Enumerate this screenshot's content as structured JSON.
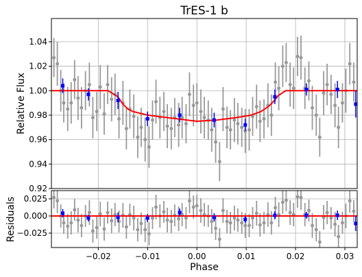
{
  "chart_data": [
    {
      "type": "scatter",
      "panel": "flux",
      "title": "TrES-1 b",
      "xlabel": "",
      "ylabel": "Relative Flux",
      "xlim": [
        -0.0295,
        0.0325
      ],
      "ylim": [
        0.92,
        1.059
      ],
      "grid": true,
      "y_ticks": [
        0.92,
        0.94,
        0.96,
        0.98,
        1.0,
        1.02,
        1.04
      ],
      "y_tick_labels": [
        "0.92",
        "0.94",
        "0.96",
        "0.98",
        "1.00",
        "1.02",
        "1.04"
      ],
      "model_curve": {
        "color": "#ff0000",
        "x": [
          -0.0295,
          -0.018,
          -0.016,
          -0.015,
          -0.014,
          -0.013,
          -0.012,
          -0.01,
          -0.006,
          -0.002,
          0.0,
          0.004,
          0.008,
          0.011,
          0.013,
          0.0145,
          0.0155,
          0.0165,
          0.018,
          0.0325
        ],
        "y": [
          1.0,
          1.0,
          0.995,
          0.989,
          0.985,
          0.983,
          0.982,
          0.98,
          0.978,
          0.976,
          0.975,
          0.976,
          0.978,
          0.98,
          0.983,
          0.987,
          0.991,
          0.996,
          1.0,
          1.0
        ]
      },
      "binned": {
        "color": "#0000ff",
        "x": [
          -0.0272,
          -0.022,
          -0.016,
          -0.01,
          -0.0035,
          0.0035,
          0.0098,
          0.0158,
          0.0222,
          0.0285,
          0.0322
        ],
        "y": [
          1.004,
          0.997,
          0.992,
          0.977,
          0.98,
          0.976,
          0.972,
          0.995,
          1.001,
          1.001,
          0.989
        ],
        "err": [
          0.006,
          0.005,
          0.007,
          0.006,
          0.006,
          0.006,
          0.005,
          0.006,
          0.005,
          0.007,
          0.011
        ]
      },
      "raw": {
        "color": "#999999",
        "x": [
          -0.029,
          -0.0283,
          -0.0276,
          -0.027,
          -0.0262,
          -0.0255,
          -0.0248,
          -0.0241,
          -0.0234,
          -0.0226,
          -0.0218,
          -0.0211,
          -0.0203,
          -0.0196,
          -0.0188,
          -0.0181,
          -0.0173,
          -0.0166,
          -0.0158,
          -0.015,
          -0.0143,
          -0.0136,
          -0.0128,
          -0.012,
          -0.0113,
          -0.0105,
          -0.0097,
          -0.009,
          -0.0083,
          -0.0075,
          -0.0067,
          -0.006,
          -0.0052,
          -0.0045,
          -0.0037,
          -0.003,
          -0.0022,
          -0.0015,
          -0.0007,
          0.0,
          0.0008,
          0.0015,
          0.0023,
          0.003,
          0.0038,
          0.0046,
          0.0053,
          0.0061,
          0.0068,
          0.0076,
          0.0083,
          0.0091,
          0.0098,
          0.0106,
          0.0113,
          0.0121,
          0.0128,
          0.0136,
          0.0144,
          0.0151,
          0.0159,
          0.0166,
          0.0174,
          0.0181,
          0.0189,
          0.0196,
          0.0204,
          0.0211,
          0.0219,
          0.0227,
          0.0234,
          0.0242,
          0.0249,
          0.0257,
          0.0264,
          0.0272,
          0.028,
          0.0287,
          0.0295,
          0.0302,
          0.031,
          0.0318
        ],
        "y": [
          1.027,
          1.022,
          1.0,
          0.99,
          0.985,
          0.99,
          1.009,
          0.994,
          0.986,
          1.0,
          1.005,
          0.978,
          0.983,
          1.003,
          0.981,
          1.005,
          0.993,
          0.997,
          0.977,
          0.99,
          0.969,
          0.985,
          0.979,
          0.962,
          0.97,
          0.96,
          0.954,
          0.976,
          0.991,
          0.978,
          0.983,
          0.971,
          0.969,
          0.978,
          0.972,
          0.978,
          0.973,
          0.997,
          0.988,
          0.99,
          0.983,
          0.978,
          0.976,
          0.968,
          0.958,
          0.942,
          0.985,
          0.97,
          0.968,
          0.976,
          0.973,
          0.97,
          0.967,
          0.968,
          0.979,
          0.987,
          0.975,
          0.977,
          0.988,
          0.98,
          1.007,
          1.002,
          1.02,
          1.023,
          1.005,
          1.002,
          1.028,
          1.027,
          1.002,
          1.008,
          0.986,
          0.98,
          0.962,
          0.998,
          1.005,
          0.997,
          0.988,
          0.97,
          0.99,
          1.0,
          1.022,
          1.007
        ],
        "err": [
          0.016,
          0.018,
          0.017,
          0.016,
          0.018,
          0.017,
          0.016,
          0.018,
          0.017,
          0.016,
          0.018,
          0.017,
          0.016,
          0.018,
          0.017,
          0.016,
          0.018,
          0.017,
          0.016,
          0.018,
          0.017,
          0.016,
          0.018,
          0.017,
          0.016,
          0.018,
          0.017,
          0.016,
          0.018,
          0.017,
          0.016,
          0.018,
          0.017,
          0.016,
          0.018,
          0.017,
          0.016,
          0.018,
          0.017,
          0.016,
          0.018,
          0.017,
          0.016,
          0.018,
          0.017,
          0.016,
          0.018,
          0.017,
          0.016,
          0.018,
          0.017,
          0.016,
          0.018,
          0.017,
          0.016,
          0.018,
          0.017,
          0.016,
          0.018,
          0.017,
          0.016,
          0.018,
          0.017,
          0.016,
          0.018,
          0.017,
          0.016,
          0.018,
          0.017,
          0.016,
          0.018,
          0.017,
          0.016,
          0.018,
          0.017,
          0.016,
          0.018,
          0.017,
          0.016,
          0.018,
          0.017,
          0.016
        ]
      }
    },
    {
      "type": "scatter",
      "panel": "residuals",
      "xlabel": "Phase",
      "ylabel": "Residuals",
      "xlim": [
        -0.0295,
        0.0325
      ],
      "ylim": [
        -0.046,
        0.037
      ],
      "grid": true,
      "x_ticks": [
        -0.02,
        -0.01,
        0.0,
        0.01,
        0.02,
        0.03
      ],
      "x_tick_labels": [
        "−0.02",
        "−0.01",
        "0.00",
        "0.01",
        "0.02",
        "0.03"
      ],
      "y_ticks": [
        -0.025,
        0.0,
        0.025
      ],
      "y_tick_labels": [
        "−0.025",
        "0.000",
        "0.025"
      ],
      "zero_line_color": "#ff0000",
      "binned": {
        "color": "#0000ff",
        "x": [
          -0.0272,
          -0.022,
          -0.016,
          -0.01,
          -0.0035,
          0.0035,
          0.0098,
          0.0158,
          0.0222,
          0.0285,
          0.0322
        ],
        "y": [
          0.004,
          -0.003,
          -0.002,
          -0.003,
          0.005,
          -0.002,
          -0.005,
          0.001,
          0.001,
          0.001,
          -0.011
        ],
        "err": [
          0.006,
          0.005,
          0.007,
          0.006,
          0.006,
          0.006,
          0.005,
          0.006,
          0.005,
          0.007,
          0.011
        ]
      },
      "raw": {
        "color": "#999999",
        "x": [
          -0.029,
          -0.0283,
          -0.0276,
          -0.027,
          -0.0262,
          -0.0255,
          -0.0248,
          -0.0241,
          -0.0234,
          -0.0226,
          -0.0218,
          -0.0211,
          -0.0203,
          -0.0196,
          -0.0188,
          -0.0181,
          -0.0173,
          -0.0166,
          -0.0158,
          -0.015,
          -0.0143,
          -0.0136,
          -0.0128,
          -0.012,
          -0.0113,
          -0.0105,
          -0.0097,
          -0.009,
          -0.0083,
          -0.0075,
          -0.0067,
          -0.006,
          -0.0052,
          -0.0045,
          -0.0037,
          -0.003,
          -0.0022,
          -0.0015,
          -0.0007,
          0.0,
          0.0008,
          0.0015,
          0.0023,
          0.003,
          0.0038,
          0.0046,
          0.0053,
          0.0061,
          0.0068,
          0.0076,
          0.0083,
          0.0091,
          0.0098,
          0.0106,
          0.0113,
          0.0121,
          0.0128,
          0.0136,
          0.0144,
          0.0151,
          0.0159,
          0.0166,
          0.0174,
          0.0181,
          0.0189,
          0.0196,
          0.0204,
          0.0211,
          0.0219,
          0.0227,
          0.0234,
          0.0242,
          0.0249,
          0.0257,
          0.0264,
          0.0272,
          0.028,
          0.0287,
          0.0295,
          0.0302,
          0.031,
          0.0318
        ],
        "y": [
          0.027,
          0.022,
          0.0,
          -0.01,
          -0.015,
          -0.01,
          0.009,
          -0.006,
          -0.014,
          0.0,
          0.005,
          -0.022,
          -0.017,
          0.003,
          -0.019,
          0.005,
          -0.007,
          0.002,
          -0.008,
          0.001,
          -0.016,
          0.002,
          -0.003,
          -0.02,
          -0.011,
          -0.02,
          -0.026,
          -0.003,
          0.013,
          0.0,
          0.006,
          -0.006,
          -0.008,
          0.001,
          -0.004,
          0.002,
          -0.003,
          0.022,
          0.013,
          0.015,
          0.008,
          0.002,
          0.0,
          -0.008,
          -0.018,
          -0.034,
          0.008,
          -0.008,
          -0.01,
          -0.003,
          -0.006,
          -0.01,
          -0.014,
          -0.014,
          -0.003,
          0.004,
          -0.013,
          -0.01,
          0.002,
          -0.01,
          0.012,
          0.002,
          0.02,
          0.023,
          0.005,
          0.002,
          0.028,
          0.027,
          0.002,
          0.008,
          -0.014,
          -0.02,
          -0.038,
          -0.002,
          0.005,
          -0.003,
          -0.012,
          -0.03,
          -0.01,
          0.0,
          0.022,
          0.007
        ],
        "err": [
          0.016,
          0.018,
          0.017,
          0.016,
          0.018,
          0.017,
          0.016,
          0.018,
          0.017,
          0.016,
          0.018,
          0.017,
          0.016,
          0.018,
          0.017,
          0.016,
          0.018,
          0.017,
          0.016,
          0.018,
          0.017,
          0.016,
          0.018,
          0.017,
          0.016,
          0.018,
          0.017,
          0.016,
          0.018,
          0.017,
          0.016,
          0.018,
          0.017,
          0.016,
          0.018,
          0.017,
          0.016,
          0.018,
          0.017,
          0.016,
          0.018,
          0.017,
          0.016,
          0.018,
          0.017,
          0.016,
          0.018,
          0.017,
          0.016,
          0.018,
          0.017,
          0.016,
          0.018,
          0.017,
          0.016,
          0.018,
          0.017,
          0.016,
          0.018,
          0.017,
          0.016,
          0.018,
          0.017,
          0.016,
          0.018,
          0.017,
          0.016,
          0.018,
          0.017,
          0.016,
          0.018,
          0.017,
          0.016,
          0.018,
          0.017,
          0.016,
          0.018,
          0.017,
          0.016,
          0.018,
          0.017,
          0.016
        ]
      }
    }
  ]
}
